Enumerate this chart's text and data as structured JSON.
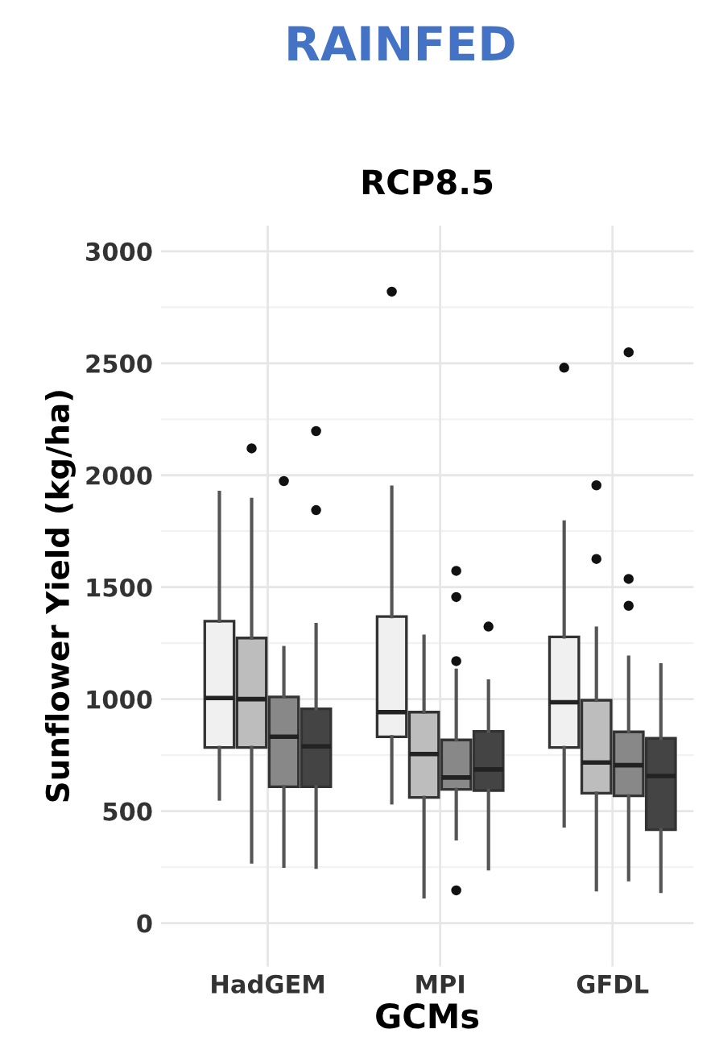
{
  "chart_data": {
    "type": "box",
    "title": "RAINFED",
    "subtitle": "RCP8.5",
    "xlabel": "GCMs",
    "ylabel": "Sunflower Yield (kg/ha)",
    "categories": [
      "HadGEM",
      "MPI",
      "GFDL"
    ],
    "ylim": [
      -194,
      3115
    ],
    "yticks": [
      0,
      500,
      1000,
      1500,
      2000,
      2500,
      3000
    ],
    "grid": true,
    "series": [
      {
        "color": "#f0f0f0",
        "boxes": [
          {
            "low": 554,
            "q1": 784,
            "median": 1005,
            "q3": 1348,
            "high": 1923
          },
          {
            "low": 537,
            "q1": 832,
            "median": 942,
            "q3": 1369,
            "high": 1947,
            "outliers": [
              2820
            ]
          },
          {
            "low": 434,
            "q1": 784,
            "median": 986,
            "q3": 1278,
            "high": 1791,
            "outliers": [
              2480
            ]
          }
        ]
      },
      {
        "color": "#bdbdbd",
        "boxes": [
          {
            "low": 273,
            "q1": 784,
            "median": 1000,
            "q3": 1273,
            "high": 1892,
            "outliers": [
              2120
            ]
          },
          {
            "low": 117,
            "q1": 561,
            "median": 755,
            "q3": 942,
            "high": 1281
          },
          {
            "low": 149,
            "q1": 580,
            "median": 717,
            "q3": 995,
            "high": 1317,
            "outliers": [
              1955,
              1626
            ]
          }
        ]
      },
      {
        "color": "#888888",
        "boxes": [
          {
            "low": 254,
            "q1": 609,
            "median": 832,
            "q3": 1010,
            "high": 1230,
            "outliers": [
              1974
            ]
          },
          {
            "low": 376,
            "q1": 597,
            "median": 650,
            "q3": 818,
            "high": 1129,
            "outliers": [
              1573,
              1456,
              1170,
              146
            ]
          },
          {
            "low": 194,
            "q1": 568,
            "median": 705,
            "q3": 854,
            "high": 1187,
            "outliers": [
              2549,
              1537,
              1417
            ]
          }
        ]
      },
      {
        "color": "#444444",
        "boxes": [
          {
            "low": 250,
            "q1": 609,
            "median": 789,
            "q3": 957,
            "high": 1333,
            "outliers": [
              2197,
              1844
            ]
          },
          {
            "low": 242,
            "q1": 592,
            "median": 686,
            "q3": 856,
            "high": 1081,
            "outliers": [
              1324
            ]
          },
          {
            "low": 142,
            "q1": 417,
            "median": 657,
            "q3": 825,
            "high": 1153
          }
        ]
      }
    ]
  }
}
